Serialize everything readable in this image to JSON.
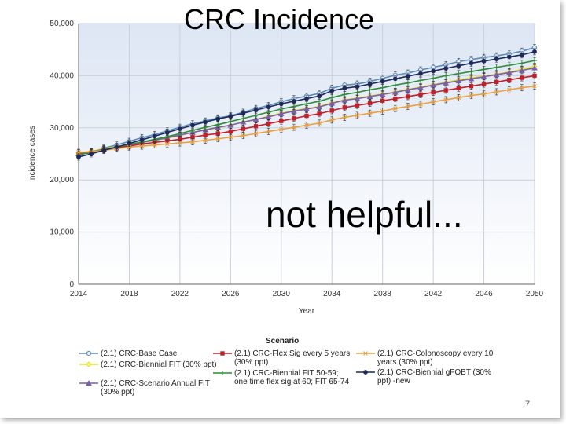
{
  "slide": {
    "title": "CRC Incidence",
    "overlay": "not helpful...",
    "page_number": "7"
  },
  "chart_data": {
    "type": "line",
    "xlabel": "Year",
    "ylabel": "Incidence cases",
    "xlim": [
      2014,
      2050
    ],
    "ylim": [
      0,
      50000
    ],
    "x_ticks": [
      2014,
      2018,
      2022,
      2026,
      2030,
      2034,
      2038,
      2042,
      2046,
      2050
    ],
    "y_ticks": [
      0,
      10000,
      20000,
      30000,
      40000,
      50000
    ],
    "y_tick_labels": [
      "0",
      "10,000",
      "20,000",
      "30,000",
      "40,000",
      "50,000"
    ],
    "grid": true,
    "legend_title": "Scenario",
    "legend_position": "bottom",
    "x": [
      2014,
      2015,
      2016,
      2017,
      2018,
      2019,
      2020,
      2021,
      2022,
      2023,
      2024,
      2025,
      2026,
      2027,
      2028,
      2029,
      2030,
      2031,
      2032,
      2033,
      2034,
      2035,
      2036,
      2037,
      2038,
      2039,
      2040,
      2041,
      2042,
      2043,
      2044,
      2045,
      2046,
      2047,
      2048,
      2049,
      2050
    ],
    "series": [
      {
        "name": "(2.1) CRC-Base Case",
        "color": "#5b8ab8",
        "marker": "circle",
        "values": [
          24800,
          25300,
          26100,
          26700,
          27400,
          28100,
          28700,
          29400,
          30100,
          30800,
          31300,
          31900,
          32300,
          33000,
          33700,
          34300,
          35000,
          35600,
          36100,
          36600,
          37600,
          38200,
          38400,
          38900,
          39500,
          40100,
          40500,
          41100,
          41600,
          42100,
          42700,
          43100,
          43500,
          43800,
          44200,
          44700,
          45400
        ]
      },
      {
        "name": "(2.1) CRC-Biennial FIT (30% ppt)",
        "color": "#e0e030",
        "marker": "diamond",
        "values": [
          25200,
          25500,
          26000,
          26400,
          26800,
          27200,
          27600,
          28000,
          28500,
          29100,
          29600,
          30000,
          30500,
          31100,
          31600,
          32200,
          32800,
          33300,
          33700,
          34100,
          34800,
          35400,
          35700,
          36100,
          36500,
          36900,
          37400,
          37800,
          38300,
          38700,
          39200,
          39600,
          39900,
          40300,
          40700,
          41200,
          41800
        ]
      },
      {
        "name": "(2.1) CRC-Scenario Annual FIT (30% ppt)",
        "color": "#7a5fa8",
        "marker": "triangle",
        "values": [
          25000,
          25400,
          25900,
          26300,
          26700,
          27200,
          27600,
          28100,
          28600,
          29100,
          29600,
          30100,
          30500,
          31100,
          31600,
          32100,
          32700,
          33200,
          33600,
          34000,
          34700,
          35300,
          35600,
          36000,
          36400,
          36800,
          37300,
          37700,
          38200,
          38600,
          39000,
          39400,
          39800,
          40200,
          40600,
          41000,
          41500
        ]
      },
      {
        "name": "(2.1) CRC-Flex Sig every 5 years (30% ppt)",
        "color": "#c0202a",
        "marker": "square",
        "values": [
          25000,
          25200,
          25700,
          26100,
          26500,
          26900,
          27200,
          27500,
          27800,
          28200,
          28600,
          28900,
          29300,
          29800,
          30300,
          30800,
          31300,
          31800,
          32300,
          32700,
          33300,
          33900,
          34300,
          34700,
          35200,
          35600,
          36000,
          36400,
          36800,
          37200,
          37600,
          38000,
          38400,
          38800,
          39200,
          39600,
          40000
        ]
      },
      {
        "name": "(2.1) CRC-Biennial FIT 50-59; one time flex sig at 60; FIT 65-74",
        "color": "#2e8b3a",
        "marker": "plus",
        "values": [
          24900,
          25300,
          25800,
          26300,
          26800,
          27300,
          27800,
          28300,
          28900,
          29500,
          30100,
          30600,
          31200,
          31800,
          32400,
          33000,
          33600,
          34100,
          34600,
          35100,
          35800,
          36400,
          36800,
          37300,
          37700,
          38200,
          38600,
          39100,
          39500,
          40000,
          40400,
          40800,
          41200,
          41600,
          42000,
          42400,
          42900
        ]
      },
      {
        "name": "(2.1) CRC-Colonoscopy every 10 years (30% ppt)",
        "color": "#e8a040",
        "marker": "star",
        "values": [
          25300,
          25400,
          25700,
          26000,
          26300,
          26500,
          26700,
          26900,
          27100,
          27300,
          27600,
          27900,
          28200,
          28500,
          28900,
          29300,
          29700,
          30100,
          30500,
          30900,
          31500,
          32000,
          32400,
          32800,
          33200,
          33700,
          34100,
          34500,
          35000,
          35400,
          35800,
          36200,
          36500,
          36900,
          37300,
          37700,
          38000
        ]
      },
      {
        "name": "(2.1) CRC-Biennial gFOBT (30% ppt) -new",
        "color": "#1f2a5a",
        "marker": "circle-filled",
        "values": [
          24400,
          25000,
          25700,
          26300,
          27000,
          27700,
          28400,
          29100,
          29800,
          30500,
          31100,
          31700,
          32200,
          32800,
          33400,
          34000,
          34600,
          35100,
          35600,
          36100,
          37100,
          37600,
          37900,
          38400,
          38900,
          39400,
          39900,
          40400,
          40900,
          41400,
          41900,
          42400,
          42800,
          43200,
          43600,
          44000,
          44600
        ]
      }
    ]
  }
}
